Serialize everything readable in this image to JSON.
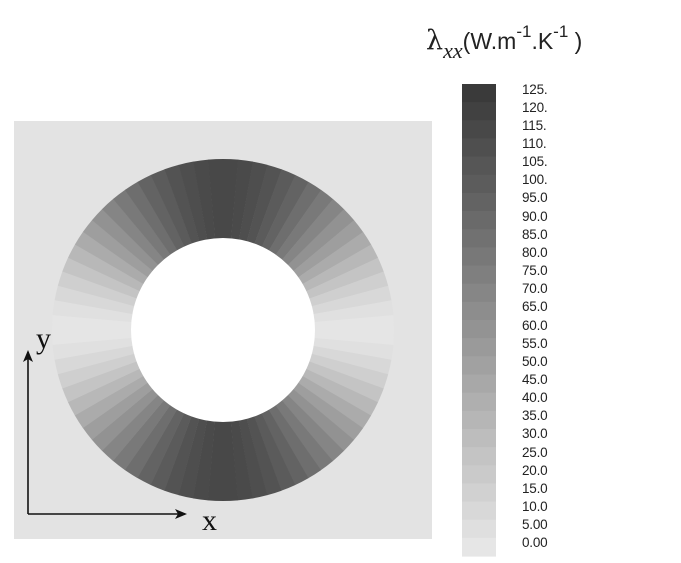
{
  "colorbar": {
    "title": {
      "symbol": "λ",
      "subscript": "xx",
      "units_open": "(W.m",
      "exp1": "-1",
      "units_mid": ".K",
      "exp2": "-1",
      "units_close": " )"
    },
    "labels": [
      "125.",
      "120.",
      "115.",
      "110.",
      "105.",
      "100.",
      "95.0",
      "90.0",
      "85.0",
      "80.0",
      "75.0",
      "70.0",
      "65.0",
      "60.0",
      "55.0",
      "50.0",
      "45.0",
      "40.0",
      "35.0",
      "30.0",
      "25.0",
      "20.0",
      "15.0",
      "10.0",
      "5.00",
      "0.00"
    ],
    "min": 0,
    "max": 125
  },
  "axes": {
    "x_label": "x",
    "y_label": "y"
  },
  "colors": {
    "background_square": "#e3e3e3",
    "low": "#e6e6e6",
    "high": "#3a3a3a",
    "axis": "#111111"
  }
}
